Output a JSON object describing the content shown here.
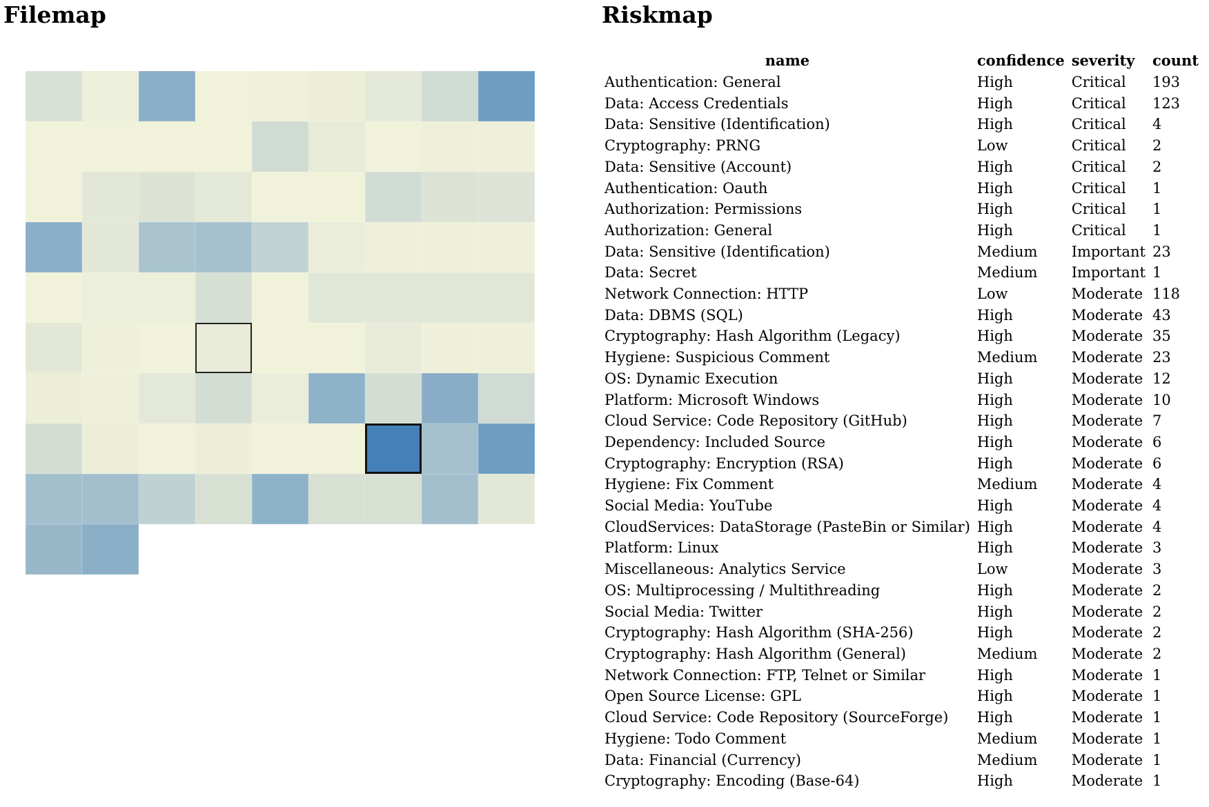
{
  "filemap": {
    "title": "Filemap",
    "grid_columns": 9,
    "cells": [
      "#d9e1d6",
      "#ecefd9",
      "#8aafc6",
      "#f0f2da",
      "#eff1d9",
      "#eceed8",
      "#e5e9d7",
      "#cfdbd3",
      "#6e9dc3",
      "#f0f2da",
      "#f0f2da",
      "#f0f2da",
      "#f0f2da",
      "#d0dbd3",
      "#e8ebd8",
      "#f0f2da",
      "#eef0da",
      "#eef0da",
      "#f0f2da",
      "#e2e7d6",
      "#dce3d5",
      "#e4e8d6",
      "#f0f2da",
      "#f0f2da",
      "#d1dcd5",
      "#dce3d5",
      "#dde4d7",
      "#8aafc6",
      "#e3e8d6",
      "#a9c3cf",
      "#a6c1ce",
      "#c1d2d2",
      "#eaedd9",
      "#eef0da",
      "#eef0da",
      "#eef0da",
      "#f0f2da",
      "#ecefd9",
      "#ecefd9",
      "#d6dfd4",
      "#f0f2da",
      "#e1e7d6",
      "#e1e7d6",
      "#e1e7d6",
      "#e1e7d6",
      "#e3e8d6",
      "#eef0da",
      "#f0f2da",
      "#e9ebd9",
      "#f0f2da",
      "#f0f2da",
      "#e9ebd9",
      "#eef0da",
      "#eef0da",
      "#eceed8",
      "#eef0da",
      "#e4e8d6",
      "#d3ddd3",
      "#eaedd9",
      "#8eb3c9",
      "#d3ddd3",
      "#89adc6",
      "#cfdbd3",
      "#d3ddd3",
      "#eceed8",
      "#f0f2da",
      "#eceed8",
      "#f0f2da",
      "#f0f2da",
      "#4580b8",
      "#a6c1ce",
      "#6e9dc3",
      "#a3bfcd",
      "#a3bfcd",
      "#bfd1d2",
      "#d8e0d4",
      "#8eb3c9",
      "#d8e0d4",
      "#d8e0d4",
      "#a3bfcd",
      "#e3e8d6",
      "#98b8ca",
      "#8aafc6"
    ],
    "selected_outline_cell": 48,
    "selected_active_cell": 69
  },
  "riskmap": {
    "title": "Riskmap",
    "headers": {
      "name": "name",
      "confidence": "confidence",
      "severity": "severity",
      "count": "count"
    },
    "rows": [
      {
        "name": "Authentication: General",
        "confidence": "High",
        "severity": "Critical",
        "count": "193"
      },
      {
        "name": "Data: Access Credentials",
        "confidence": "High",
        "severity": "Critical",
        "count": "123"
      },
      {
        "name": "Data: Sensitive (Identification)",
        "confidence": "High",
        "severity": "Critical",
        "count": "4"
      },
      {
        "name": "Cryptography: PRNG",
        "confidence": "Low",
        "severity": "Critical",
        "count": "2"
      },
      {
        "name": "Data: Sensitive (Account)",
        "confidence": "High",
        "severity": "Critical",
        "count": "2"
      },
      {
        "name": "Authentication: Oauth",
        "confidence": "High",
        "severity": "Critical",
        "count": "1"
      },
      {
        "name": "Authorization: Permissions",
        "confidence": "High",
        "severity": "Critical",
        "count": "1"
      },
      {
        "name": "Authorization: General",
        "confidence": "High",
        "severity": "Critical",
        "count": "1"
      },
      {
        "name": "Data: Sensitive (Identification)",
        "confidence": "Medium",
        "severity": "Important",
        "count": "23"
      },
      {
        "name": "Data: Secret",
        "confidence": "Medium",
        "severity": "Important",
        "count": "1"
      },
      {
        "name": "Network Connection: HTTP",
        "confidence": "Low",
        "severity": "Moderate",
        "count": "118"
      },
      {
        "name": "Data: DBMS (SQL)",
        "confidence": "High",
        "severity": "Moderate",
        "count": "43"
      },
      {
        "name": "Cryptography: Hash Algorithm (Legacy)",
        "confidence": "High",
        "severity": "Moderate",
        "count": "35"
      },
      {
        "name": "Hygiene: Suspicious Comment",
        "confidence": "Medium",
        "severity": "Moderate",
        "count": "23"
      },
      {
        "name": "OS: Dynamic Execution",
        "confidence": "High",
        "severity": "Moderate",
        "count": "12"
      },
      {
        "name": "Platform: Microsoft Windows",
        "confidence": "High",
        "severity": "Moderate",
        "count": "10"
      },
      {
        "name": "Cloud Service: Code Repository (GitHub)",
        "confidence": "High",
        "severity": "Moderate",
        "count": "7"
      },
      {
        "name": "Dependency: Included Source",
        "confidence": "High",
        "severity": "Moderate",
        "count": "6"
      },
      {
        "name": "Cryptography: Encryption (RSA)",
        "confidence": "High",
        "severity": "Moderate",
        "count": "6"
      },
      {
        "name": "Hygiene: Fix Comment",
        "confidence": "Medium",
        "severity": "Moderate",
        "count": "4"
      },
      {
        "name": "Social Media: YouTube",
        "confidence": "High",
        "severity": "Moderate",
        "count": "4"
      },
      {
        "name": "CloudServices: DataStorage (PasteBin or Similar)",
        "confidence": "High",
        "severity": "Moderate",
        "count": "4"
      },
      {
        "name": "Platform: Linux",
        "confidence": "High",
        "severity": "Moderate",
        "count": "3"
      },
      {
        "name": "Miscellaneous: Analytics Service",
        "confidence": "Low",
        "severity": "Moderate",
        "count": "3"
      },
      {
        "name": "OS: Multiprocessing / Multithreading",
        "confidence": "High",
        "severity": "Moderate",
        "count": "2"
      },
      {
        "name": "Social Media: Twitter",
        "confidence": "High",
        "severity": "Moderate",
        "count": "2"
      },
      {
        "name": "Cryptography: Hash Algorithm (SHA-256)",
        "confidence": "High",
        "severity": "Moderate",
        "count": "2"
      },
      {
        "name": "Cryptography: Hash Algorithm (General)",
        "confidence": "Medium",
        "severity": "Moderate",
        "count": "2"
      },
      {
        "name": "Network Connection: FTP, Telnet or Similar",
        "confidence": "High",
        "severity": "Moderate",
        "count": "1"
      },
      {
        "name": "Open Source License: GPL",
        "confidence": "High",
        "severity": "Moderate",
        "count": "1"
      },
      {
        "name": "Cloud Service: Code Repository (SourceForge)",
        "confidence": "High",
        "severity": "Moderate",
        "count": "1"
      },
      {
        "name": "Hygiene: Todo Comment",
        "confidence": "Medium",
        "severity": "Moderate",
        "count": "1"
      },
      {
        "name": "Data: Financial (Currency)",
        "confidence": "Medium",
        "severity": "Moderate",
        "count": "1"
      },
      {
        "name": "Cryptography: Encoding (Base-64)",
        "confidence": "High",
        "severity": "Moderate",
        "count": "1"
      }
    ]
  }
}
